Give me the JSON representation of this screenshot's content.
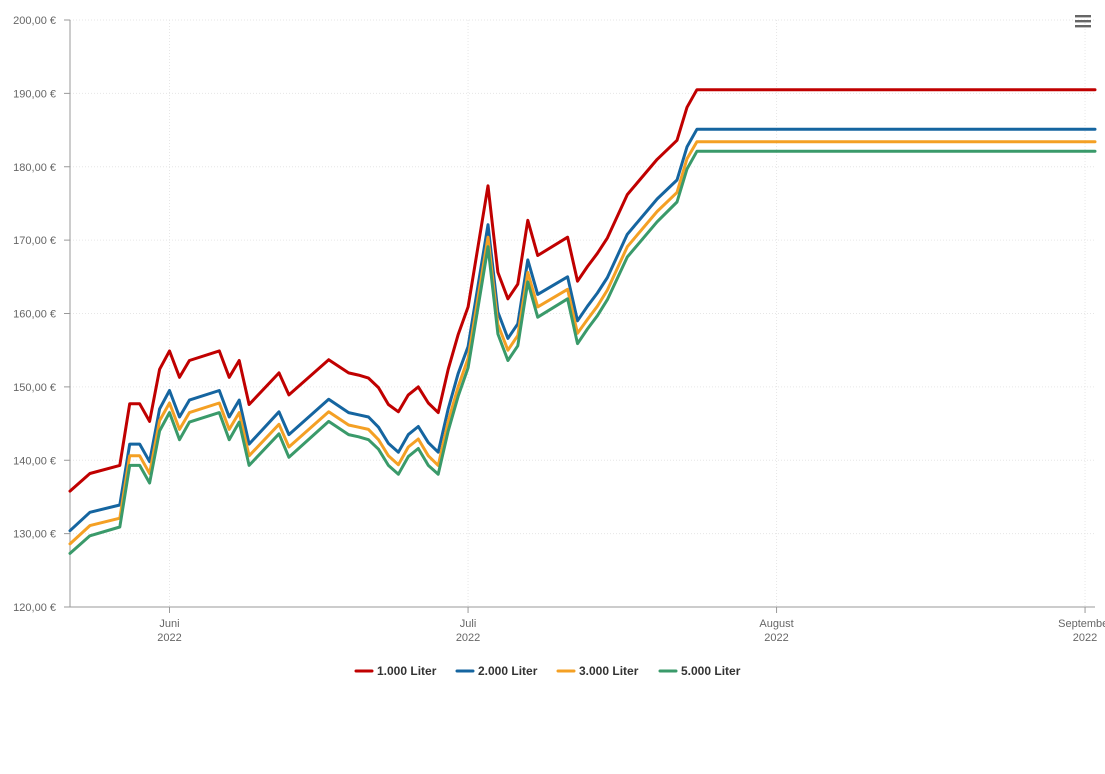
{
  "chart_data": {
    "type": "line",
    "ylim": [
      120,
      200
    ],
    "y_ticks": [
      "120,00 €",
      "130,00 €",
      "140,00 €",
      "150,00 €",
      "160,00 €",
      "170,00 €",
      "180,00 €",
      "190,00 €",
      "200,00 €"
    ],
    "y_tick_values": [
      120,
      130,
      140,
      150,
      160,
      170,
      180,
      190,
      200
    ],
    "x_range": [
      "2022-05-22",
      "2022-09-02"
    ],
    "x_ticks": [
      {
        "date": "2022-06-01",
        "month": "Juni",
        "year": "2022"
      },
      {
        "date": "2022-07-01",
        "month": "Juli",
        "year": "2022"
      },
      {
        "date": "2022-08-01",
        "month": "August",
        "year": "2022"
      },
      {
        "date": "2022-09-01",
        "month": "September",
        "year": "2022"
      }
    ],
    "grid": true,
    "legend_position": "bottom",
    "dates": [
      "2022-05-22",
      "2022-05-24",
      "2022-05-27",
      "2022-05-28",
      "2022-05-29",
      "2022-05-30",
      "2022-05-31",
      "2022-06-01",
      "2022-06-02",
      "2022-06-03",
      "2022-06-06",
      "2022-06-07",
      "2022-06-08",
      "2022-06-09",
      "2022-06-12",
      "2022-06-13",
      "2022-06-17",
      "2022-06-19",
      "2022-06-20",
      "2022-06-21",
      "2022-06-22",
      "2022-06-23",
      "2022-06-24",
      "2022-06-25",
      "2022-06-26",
      "2022-06-27",
      "2022-06-28",
      "2022-06-29",
      "2022-06-30",
      "2022-07-01",
      "2022-07-03",
      "2022-07-04",
      "2022-07-05",
      "2022-07-06",
      "2022-07-07",
      "2022-07-08",
      "2022-07-11",
      "2022-07-12",
      "2022-07-13",
      "2022-07-14",
      "2022-07-15",
      "2022-07-17",
      "2022-07-20",
      "2022-07-22",
      "2022-07-23",
      "2022-07-24",
      "2022-07-25",
      "2022-07-29",
      "2022-08-01",
      "2022-08-03",
      "2022-08-06",
      "2022-08-07",
      "2022-08-08",
      "2022-08-10",
      "2022-08-13",
      "2022-08-15",
      "2022-08-16",
      "2022-08-17",
      "2022-08-18",
      "2022-08-19",
      "2022-08-21",
      "2022-08-25",
      "2022-08-27",
      "2022-08-28",
      "2022-08-29",
      "2022-08-31",
      "2022-09-01",
      "2022-09-02"
    ],
    "series": [
      {
        "name": "1.000 Liter",
        "color": "#c00000",
        "values": [
          135.8,
          138.2,
          139.3,
          147.7,
          147.7,
          145.3,
          152.4,
          154.9,
          151.3,
          153.6,
          154.9,
          151.3,
          153.6,
          147.6,
          151.9,
          148.9,
          153.7,
          151.9,
          151.6,
          151.2,
          149.9,
          147.6,
          146.6,
          148.9,
          150.0,
          147.8,
          146.5,
          152.4,
          157.1,
          160.9,
          177.4,
          165.6,
          162.0,
          164.0,
          172.7,
          167.9,
          170.4,
          164.4,
          166.4,
          168.2,
          170.3,
          176.2,
          181.0,
          183.6,
          188.1,
          190.5,
          190.5,
          190.5,
          190.5,
          190.5,
          190.5,
          190.5,
          190.5,
          190.5,
          190.5,
          190.5,
          190.5,
          190.5,
          190.5,
          190.5,
          190.5,
          190.5,
          190.5,
          190.5,
          190.5,
          190.5,
          190.5,
          190.5
        ]
      },
      {
        "name": "2.000 Liter",
        "color": "#1565a0",
        "values": [
          130.4,
          132.9,
          133.9,
          142.2,
          142.2,
          139.8,
          147.0,
          149.5,
          145.9,
          148.2,
          149.5,
          145.9,
          148.2,
          142.2,
          146.6,
          143.5,
          148.3,
          146.5,
          146.2,
          145.9,
          144.5,
          142.3,
          141.1,
          143.5,
          144.6,
          142.4,
          141.1,
          147.0,
          151.8,
          155.5,
          172.1,
          160.2,
          156.6,
          158.6,
          167.3,
          162.6,
          165.0,
          159.0,
          161.0,
          162.8,
          164.9,
          170.8,
          175.6,
          178.2,
          182.7,
          185.1,
          185.1,
          185.1,
          185.1,
          185.1,
          185.1,
          185.1,
          185.1,
          185.1,
          185.1,
          185.1,
          185.1,
          185.1,
          185.1,
          185.1,
          185.1,
          185.1,
          185.1,
          185.1,
          185.1,
          185.1,
          185.1,
          185.1
        ]
      },
      {
        "name": "3.000 Liter",
        "color": "#f4a024",
        "values": [
          128.6,
          131.1,
          132.1,
          140.6,
          140.6,
          138.2,
          145.4,
          147.8,
          144.2,
          146.5,
          147.8,
          144.2,
          146.5,
          140.6,
          144.9,
          141.8,
          146.6,
          144.8,
          144.5,
          144.2,
          142.8,
          140.6,
          139.4,
          141.8,
          142.9,
          140.6,
          139.3,
          145.3,
          150.0,
          153.9,
          170.4,
          158.5,
          155.0,
          157.0,
          165.6,
          160.9,
          163.3,
          157.3,
          159.2,
          161.0,
          163.2,
          169.1,
          173.9,
          176.5,
          181.1,
          183.4,
          183.4,
          183.4,
          183.4,
          183.4,
          183.4,
          183.4,
          183.4,
          183.4,
          183.4,
          183.4,
          183.4,
          183.4,
          183.4,
          183.4,
          183.4,
          183.4,
          183.4,
          183.4,
          183.4,
          183.4,
          183.4,
          183.4
        ]
      },
      {
        "name": "5.000 Liter",
        "color": "#3a9a6a",
        "values": [
          127.3,
          129.7,
          130.9,
          139.3,
          139.3,
          136.9,
          144.0,
          146.5,
          142.8,
          145.2,
          146.5,
          142.8,
          145.2,
          139.3,
          143.6,
          140.4,
          145.3,
          143.5,
          143.2,
          142.8,
          141.5,
          139.3,
          138.1,
          140.5,
          141.6,
          139.3,
          138.1,
          144.0,
          148.7,
          152.6,
          169.1,
          157.2,
          153.6,
          155.6,
          164.3,
          159.5,
          162.0,
          155.9,
          157.9,
          159.7,
          161.9,
          167.7,
          172.5,
          175.2,
          179.7,
          182.1,
          182.1,
          182.1,
          182.1,
          182.1,
          182.1,
          182.1,
          182.1,
          182.1,
          182.1,
          182.1,
          182.1,
          182.1,
          182.1,
          182.1,
          182.1,
          182.1,
          182.1,
          182.1,
          182.1,
          182.1,
          182.1,
          182.1
        ]
      }
    ]
  },
  "icons": {
    "menu": "hamburger-menu-icon"
  }
}
